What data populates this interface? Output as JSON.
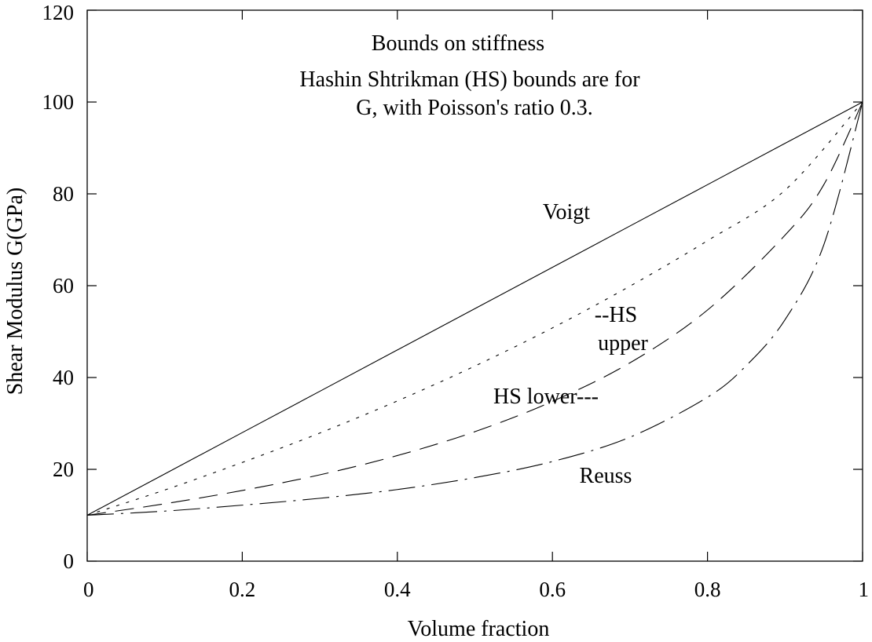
{
  "chart_data": {
    "type": "line",
    "title": "",
    "xlabel": "Volume fraction",
    "ylabel": "Shear Modulus G(GPa)",
    "xlim": [
      0,
      1
    ],
    "ylim": [
      0,
      120
    ],
    "xticks": [
      0,
      0.2,
      0.4,
      0.6,
      0.8,
      1
    ],
    "xtick_labels": [
      "0",
      "0.2",
      "0.4",
      "0.6",
      "0.8",
      "1"
    ],
    "yticks": [
      0,
      20,
      40,
      60,
      80,
      100,
      120
    ],
    "ytick_labels": [
      "0",
      "20",
      "40",
      "60",
      "80",
      "100",
      "120"
    ],
    "grid": false,
    "legend": "none",
    "annotations": [
      {
        "text": "Bounds on stiffness"
      },
      {
        "text": "Hashin Shtrikman (HS) bounds are for"
      },
      {
        "text": "G, with Poisson's ratio 0.3."
      }
    ],
    "series": [
      {
        "name": "Voigt",
        "label_text": "Voigt",
        "style": "solid",
        "x": [
          0,
          0.1,
          0.2,
          0.3,
          0.4,
          0.5,
          0.6,
          0.7,
          0.8,
          0.9,
          1
        ],
        "y": [
          10,
          19,
          28,
          37,
          46,
          55,
          64,
          73,
          82,
          91,
          100
        ]
      },
      {
        "name": "HS upper",
        "label_text": [
          "--HS",
          "upper"
        ],
        "style": "dotted",
        "x": [
          0,
          0.1,
          0.2,
          0.3,
          0.4,
          0.5,
          0.6,
          0.7,
          0.8,
          0.9,
          1
        ],
        "y": [
          10,
          15.5,
          21.5,
          27.9,
          34.9,
          42.5,
          50.8,
          59.9,
          69.8,
          80.8,
          100
        ]
      },
      {
        "name": "HS lower",
        "label_text": "HS lower---",
        "style": "dashed",
        "x": [
          0,
          0.1,
          0.2,
          0.3,
          0.4,
          0.5,
          0.6,
          0.7,
          0.8,
          0.9,
          0.95,
          1
        ],
        "y": [
          10,
          12.5,
          15.4,
          18.8,
          23,
          28.2,
          34.8,
          43.2,
          54.7,
          71,
          82,
          100
        ]
      },
      {
        "name": "Reuss",
        "label_text": "Reuss",
        "style": "dashdot",
        "x": [
          0,
          0.1,
          0.2,
          0.3,
          0.4,
          0.5,
          0.6,
          0.7,
          0.8,
          0.85,
          0.9,
          0.95,
          1
        ],
        "y": [
          10,
          10.9,
          12.2,
          13.7,
          15.6,
          18.2,
          21.7,
          27,
          35.7,
          42.6,
          52.6,
          68.9,
          100
        ]
      }
    ]
  }
}
